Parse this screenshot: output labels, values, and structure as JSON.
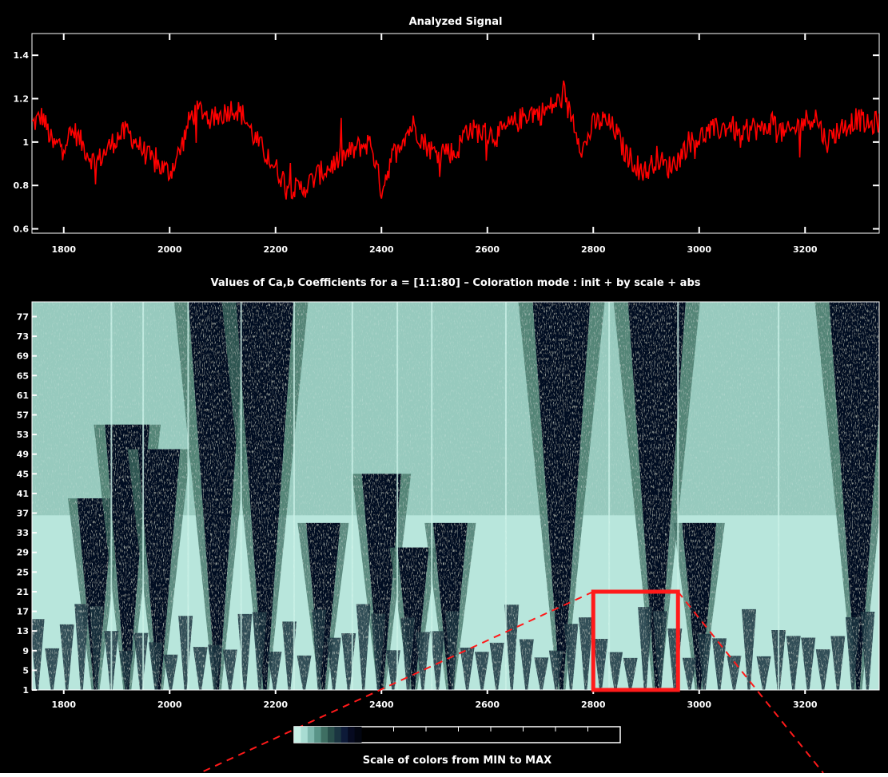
{
  "signal_panel": {
    "title": "Analyzed Signal"
  },
  "cwt_panel": {
    "title": "Values of Ca,b Coefficients for a = [1:1:80] – Coloration mode : init + by scale + abs"
  },
  "colorbar": {
    "label": "Scale of colors from MIN to MAX",
    "colors": [
      "#c8f0e6",
      "#a8dcd2",
      "#7fb8ae",
      "#5a9488",
      "#3e6e62",
      "#284e4a",
      "#1a3440",
      "#0d1a38",
      "#060a20",
      "#020510"
    ]
  },
  "colors": {
    "signal_line": "#ff0000",
    "background": "#000000",
    "annotation": "#ff1a1a"
  },
  "chart_data": [
    {
      "type": "line",
      "title": "Analyzed Signal",
      "xlabel": "",
      "ylabel": "",
      "xlim": [
        1740,
        3340
      ],
      "ylim": [
        0.58,
        1.5
      ],
      "x_ticks": [
        "1800",
        "2000",
        "2200",
        "2400",
        "2600",
        "2800",
        "3000",
        "3200"
      ],
      "y_ticks": [
        "0.6",
        "0.8",
        "1",
        "1.2",
        "1.4"
      ],
      "series": [
        {
          "x": [
            1740,
            1760,
            1780,
            1800,
            1820,
            1840,
            1860,
            1880,
            1900,
            1920,
            1940,
            1960,
            1980,
            2000,
            2020,
            2040,
            2060,
            2080,
            2100,
            2120,
            2140,
            2160,
            2180,
            2200,
            2220,
            2240,
            2260,
            2280,
            2300,
            2320,
            2340,
            2360,
            2380,
            2400,
            2420,
            2440,
            2460,
            2480,
            2500,
            2520,
            2540,
            2560,
            2580,
            2600,
            2620,
            2640,
            2660,
            2680,
            2700,
            2720,
            2740,
            2760,
            2780,
            2800,
            2820,
            2840,
            2860,
            2880,
            2900,
            2920,
            2940,
            2960,
            2980,
            3000,
            3020,
            3040,
            3060,
            3080,
            3100,
            3120,
            3140,
            3160,
            3180,
            3200,
            3220,
            3240,
            3260,
            3280,
            3300,
            3320,
            3340
          ],
          "values": [
            1.08,
            1.12,
            0.98,
            1.0,
            1.05,
            0.97,
            0.9,
            0.96,
            1.02,
            1.05,
            0.99,
            0.93,
            0.89,
            0.86,
            0.96,
            1.12,
            1.15,
            1.1,
            1.13,
            1.16,
            1.12,
            1.02,
            0.95,
            0.88,
            0.81,
            0.78,
            0.8,
            0.85,
            0.88,
            0.92,
            0.95,
            0.98,
            1.0,
            0.78,
            0.93,
            1.02,
            1.08,
            1.0,
            0.95,
            0.97,
            0.94,
            1.06,
            1.05,
            1.04,
            1.03,
            1.07,
            1.1,
            1.14,
            1.13,
            1.16,
            1.2,
            1.12,
            0.96,
            1.08,
            1.1,
            1.06,
            0.95,
            0.9,
            0.86,
            0.93,
            0.88,
            0.92,
            1.0,
            1.02,
            1.05,
            1.06,
            1.08,
            1.01,
            1.07,
            1.05,
            1.1,
            1.03,
            1.06,
            1.1,
            1.12,
            1.0,
            1.05,
            1.08,
            1.11,
            1.07,
            1.1
          ]
        }
      ]
    },
    {
      "type": "heatmap",
      "title": "Values of Ca,b Coefficients for a = [1:1:80] – Coloration mode : init + by scale + abs",
      "xlabel": "",
      "ylabel": "",
      "xlim": [
        1740,
        3340
      ],
      "ylim": [
        1,
        80
      ],
      "x_ticks": [
        "1800",
        "2000",
        "2200",
        "2400",
        "2600",
        "2800",
        "3000",
        "3200"
      ],
      "y_ticks": [
        "1",
        "5",
        "9",
        "13",
        "17",
        "21",
        "25",
        "29",
        "33",
        "37",
        "41",
        "45",
        "49",
        "53",
        "57",
        "61",
        "65",
        "69",
        "73",
        "77"
      ],
      "dark_ridges": [
        {
          "x": 1860,
          "a_max": 40
        },
        {
          "x": 1920,
          "a_max": 55
        },
        {
          "x": 1980,
          "a_max": 50
        },
        {
          "x": 2090,
          "a_max": 80
        },
        {
          "x": 2180,
          "a_max": 80
        },
        {
          "x": 2290,
          "a_max": 35
        },
        {
          "x": 2400,
          "a_max": 45
        },
        {
          "x": 2460,
          "a_max": 30
        },
        {
          "x": 2530,
          "a_max": 35
        },
        {
          "x": 2740,
          "a_max": 80
        },
        {
          "x": 2920,
          "a_max": 80
        },
        {
          "x": 3000,
          "a_max": 35
        },
        {
          "x": 3300,
          "a_max": 80
        }
      ],
      "highlight_box": {
        "x_range": [
          2800,
          2960
        ],
        "a_range": [
          1,
          21
        ]
      }
    }
  ]
}
